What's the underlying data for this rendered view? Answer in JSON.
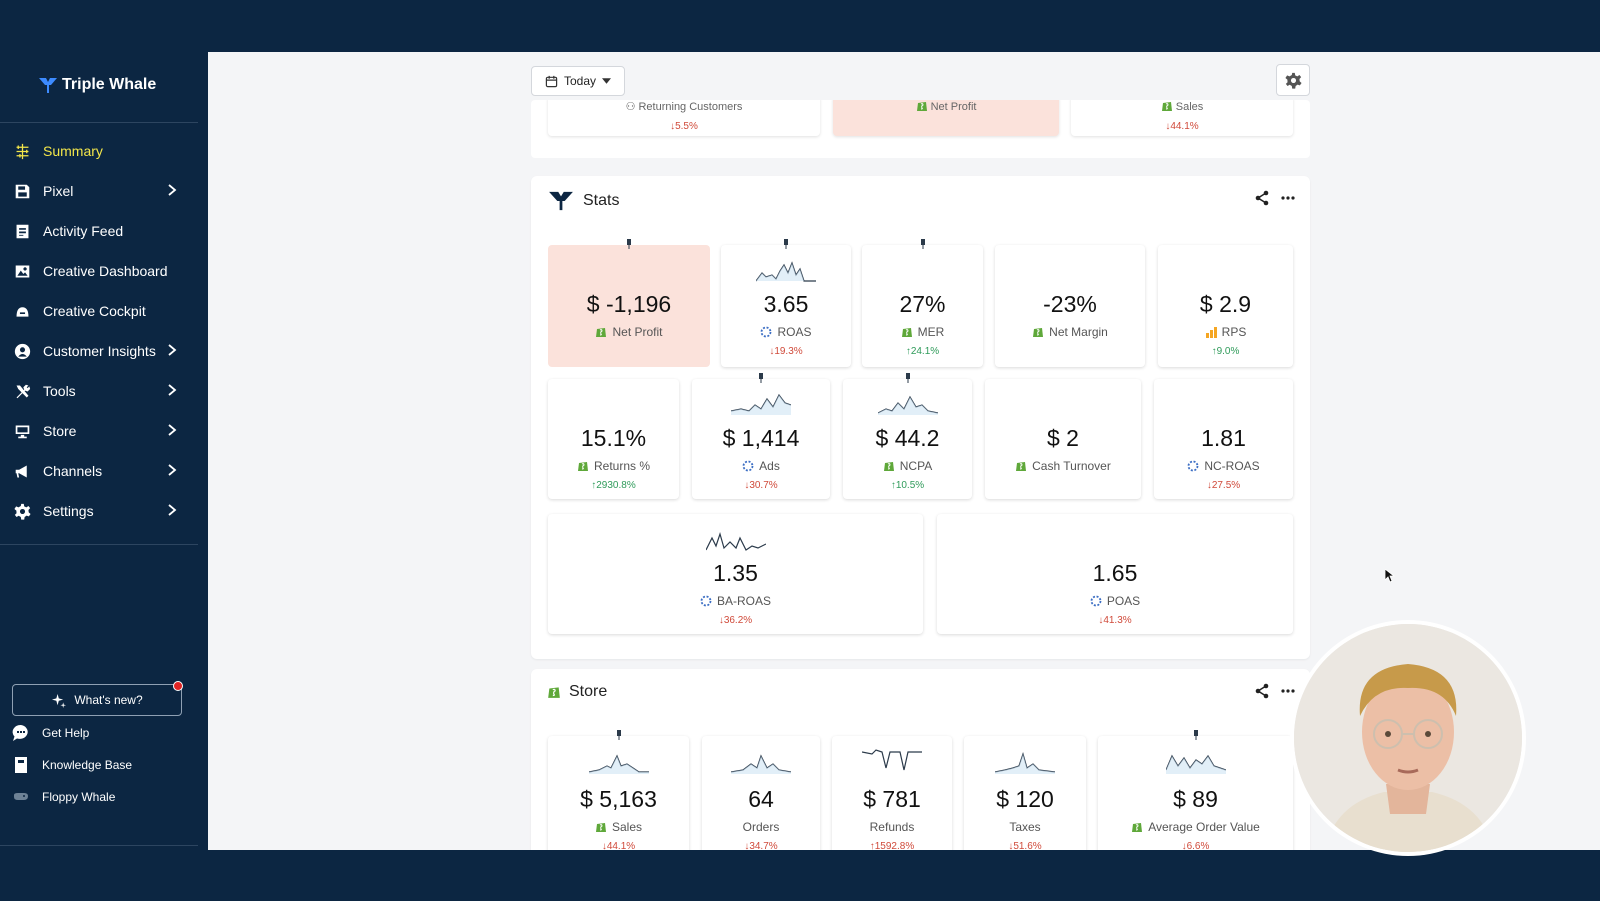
{
  "app": {
    "name": "Triple Whale"
  },
  "sidebar": {
    "items": [
      {
        "label": "Summary",
        "icon": "summary-icon",
        "active": true,
        "chevron": false
      },
      {
        "label": "Pixel",
        "icon": "pixel-icon",
        "active": false,
        "chevron": true
      },
      {
        "label": "Activity Feed",
        "icon": "activity-feed-icon",
        "active": false,
        "chevron": false
      },
      {
        "label": "Creative Dashboard",
        "icon": "creative-dashboard-icon",
        "active": false,
        "chevron": false
      },
      {
        "label": "Creative Cockpit",
        "icon": "creative-cockpit-icon",
        "active": false,
        "chevron": false
      },
      {
        "label": "Customer Insights",
        "icon": "customer-insights-icon",
        "active": false,
        "chevron": true
      },
      {
        "label": "Tools",
        "icon": "tools-icon",
        "active": false,
        "chevron": true
      },
      {
        "label": "Store",
        "icon": "store-icon",
        "active": false,
        "chevron": true
      },
      {
        "label": "Channels",
        "icon": "channels-icon",
        "active": false,
        "chevron": true
      },
      {
        "label": "Settings",
        "icon": "settings-icon",
        "active": false,
        "chevron": true
      }
    ],
    "whats_new": "What's new?",
    "footer": [
      {
        "label": "Get Help",
        "icon": "chat-icon"
      },
      {
        "label": "Knowledge Base",
        "icon": "book-icon"
      },
      {
        "label": "Floppy Whale",
        "icon": "game-icon"
      }
    ]
  },
  "toolbar": {
    "date_label": "Today"
  },
  "top_cards": [
    {
      "label": "Returning Customers",
      "change": "5.5%",
      "direction": "down"
    },
    {
      "label": "Net Profit",
      "change": "",
      "direction": ""
    },
    {
      "label": "Sales",
      "change": "44.1%",
      "direction": "down"
    }
  ],
  "stats": {
    "title": "Stats",
    "cards": [
      {
        "value": "$ -1,196",
        "label": "Net Profit",
        "icon": "shopify-icon",
        "change": "",
        "direction": ""
      },
      {
        "value": "3.65",
        "label": "ROAS",
        "icon": "pixel-ring-icon",
        "change": "19.3%",
        "direction": "down"
      },
      {
        "value": "27%",
        "label": "MER",
        "icon": "shopify-icon",
        "change": "24.1%",
        "direction": "up"
      },
      {
        "value": "-23%",
        "label": "Net Margin",
        "icon": "shopify-icon",
        "change": "",
        "direction": ""
      },
      {
        "value": "$ 2.9",
        "label": "RPS",
        "icon": "bar-chart-icon",
        "change": "9.0%",
        "direction": "up"
      },
      {
        "value": "15.1%",
        "label": "Returns %",
        "icon": "shopify-icon",
        "change": "2930.8%",
        "direction": "up"
      },
      {
        "value": "$ 1,414",
        "label": "Ads",
        "icon": "pixel-ring-icon",
        "change": "30.7%",
        "direction": "down"
      },
      {
        "value": "$ 44.2",
        "label": "NCPA",
        "icon": "shopify-icon",
        "change": "10.5%",
        "direction": "up"
      },
      {
        "value": "$ 2",
        "label": "Cash Turnover",
        "icon": "shopify-icon",
        "change": "",
        "direction": ""
      },
      {
        "value": "1.81",
        "label": "NC-ROAS",
        "icon": "pixel-ring-icon",
        "change": "27.5%",
        "direction": "down"
      },
      {
        "value": "1.35",
        "label": "BA-ROAS",
        "icon": "pixel-ring-icon",
        "change": "36.2%",
        "direction": "down"
      },
      {
        "value": "1.65",
        "label": "POAS",
        "icon": "pixel-ring-icon",
        "change": "41.3%",
        "direction": "down"
      }
    ]
  },
  "store": {
    "title": "Store",
    "cards": [
      {
        "value": "$ 5,163",
        "label": "Sales",
        "icon": "shopify-icon",
        "change": "44.1%",
        "direction": "down"
      },
      {
        "value": "64",
        "label": "Orders",
        "icon": "",
        "change": "34.7%",
        "direction": "down"
      },
      {
        "value": "$ 781",
        "label": "Refunds",
        "icon": "",
        "change": "1592.8%",
        "direction": "up"
      },
      {
        "value": "$ 120",
        "label": "Taxes",
        "icon": "",
        "change": "51.6%",
        "direction": "down"
      },
      {
        "value": "$ 89",
        "label": "Average Order Value",
        "icon": "shopify-icon",
        "change": "6.6%",
        "direction": "down"
      }
    ]
  },
  "colors": {
    "sidebar_bg": "#0c2642",
    "active": "#f3e64a",
    "pink": "#fbe2db",
    "down": "#d04a3a",
    "up": "#2f9b5a"
  }
}
